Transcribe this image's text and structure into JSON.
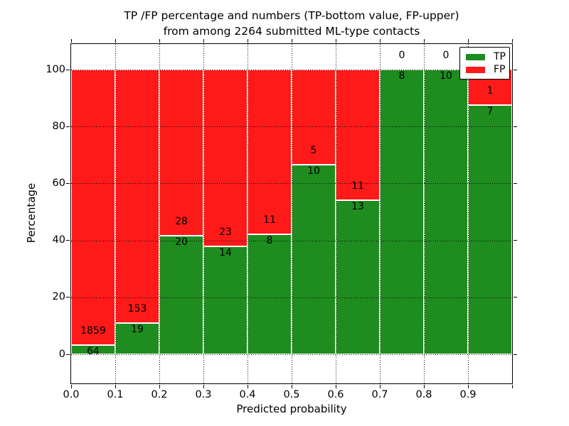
{
  "figure": {
    "title_line1": "TP /FP percentage and numbers (TP-bottom value, FP-upper)",
    "title_line2": "from among 2264 submitted ML-type contacts",
    "xlabel": "Predicted probability",
    "ylabel": "Percentage"
  },
  "legend": {
    "items": [
      {
        "label": "TP",
        "color": "#1f8c1f"
      },
      {
        "label": "FP",
        "color": "#ff1a1a"
      }
    ]
  },
  "chart_data": {
    "type": "bar",
    "stacked": true,
    "normalized_to_percent": true,
    "title": "TP /FP percentage and numbers (TP-bottom value, FP-upper) from among 2264 submitted ML-type contacts",
    "xlabel": "Predicted probability",
    "ylabel": "Percentage",
    "total_contacts": 2264,
    "bin_width": 0.1,
    "categories": [
      "0.0",
      "0.1",
      "0.2",
      "0.3",
      "0.4",
      "0.5",
      "0.6",
      "0.7",
      "0.8",
      "0.9"
    ],
    "series": [
      {
        "name": "TP",
        "color": "#1f8c1f",
        "values": [
          64,
          19,
          20,
          14,
          8,
          10,
          13,
          8,
          10,
          7
        ]
      },
      {
        "name": "FP",
        "color": "#ff1a1a",
        "values": [
          1859,
          153,
          28,
          23,
          11,
          5,
          11,
          0,
          0,
          1
        ]
      }
    ],
    "tp_percent": [
      3.3,
      11.0,
      41.7,
      37.8,
      42.1,
      66.7,
      54.2,
      100.0,
      100.0,
      87.5
    ],
    "xticks": [
      "0.0",
      "0.1",
      "0.2",
      "0.3",
      "0.4",
      "0.5",
      "0.6",
      "0.7",
      "0.8",
      "0.9"
    ],
    "yticks": [
      0,
      20,
      40,
      60,
      80,
      100
    ],
    "ylim_display": [
      -10,
      109
    ],
    "grid": true,
    "legend_position": "upper right"
  }
}
